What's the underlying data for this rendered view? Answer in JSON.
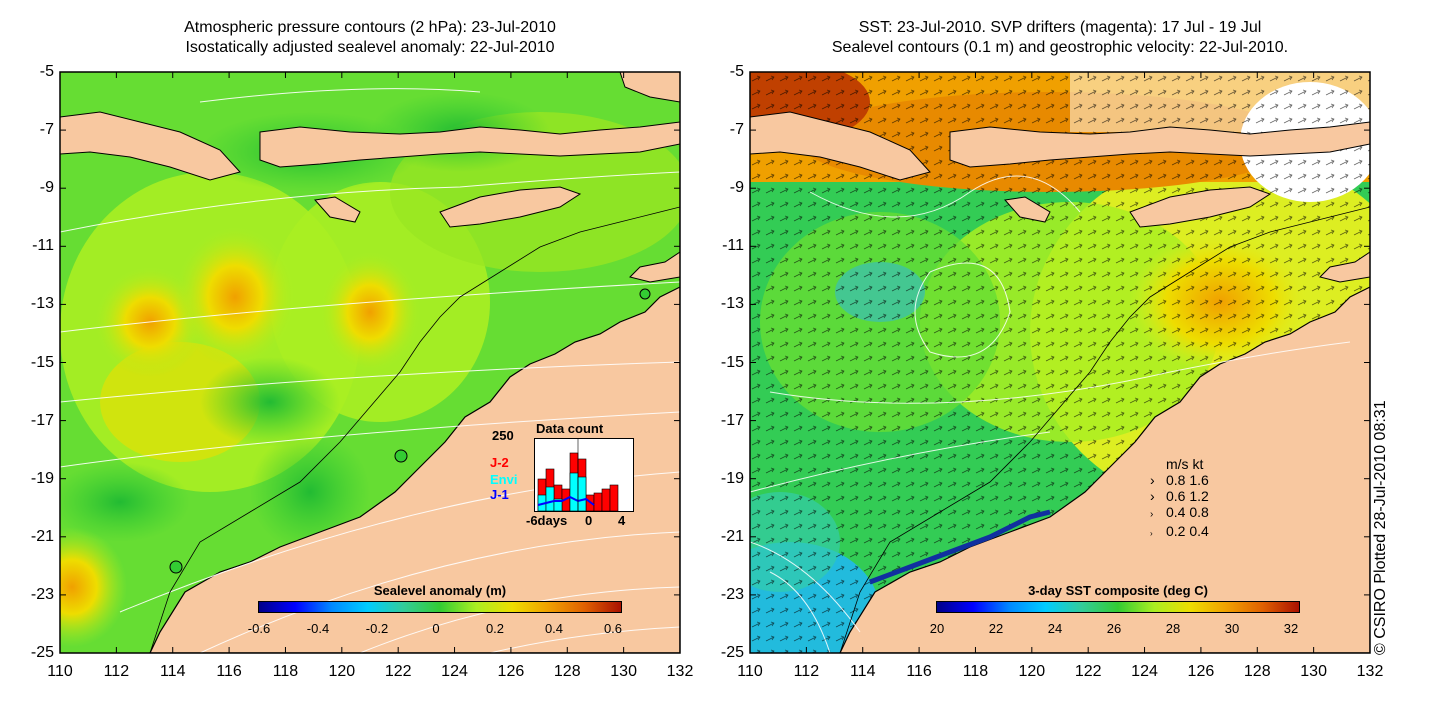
{
  "left_panel": {
    "title_line1": "Atmospheric pressure contours (2 hPa): 23-Jul-2010",
    "title_line2": "Isostatically adjusted sealevel anomaly: 22-Jul-2010",
    "colorbar": {
      "title": "Sealevel anomaly (m)",
      "ticks": [
        "-0.6",
        "-0.4",
        "-0.2",
        "0",
        "0.2",
        "0.4",
        "0.6"
      ]
    },
    "inset": {
      "title": "Data count",
      "ymax_label": "250",
      "x_ticks": [
        "-6days",
        "0",
        "4"
      ],
      "legend": [
        {
          "label": "J-2",
          "color": "#ff0000"
        },
        {
          "label": "Envi",
          "color": "#00ffff"
        },
        {
          "label": "J-1",
          "color": "#0000ff"
        }
      ]
    }
  },
  "right_panel": {
    "title_line1": "SST: 23-Jul-2010. SVP drifters (magenta): 17 Jul - 19 Jul",
    "title_line2": "Sealevel contours (0.1 m) and geostrophic velocity: 22-Jul-2010.",
    "colorbar": {
      "title": "3-day SST composite (deg C)",
      "ticks": [
        "20",
        "22",
        "24",
        "26",
        "28",
        "30",
        "32"
      ]
    },
    "vector_legend": {
      "header": "m/s  kt",
      "rows": [
        "0.8  1.6",
        "0.6  1.2",
        "0.4  0.8",
        "0.2  0.4"
      ]
    }
  },
  "axes": {
    "y_ticks": [
      "-5",
      "-7",
      "-9",
      "-11",
      "-13",
      "-15",
      "-17",
      "-19",
      "-21",
      "-23",
      "-25"
    ],
    "x_ticks": [
      "110",
      "112",
      "114",
      "116",
      "118",
      "120",
      "122",
      "124",
      "126",
      "128",
      "130",
      "132"
    ]
  },
  "credit": "© CSIRO Plotted 28-Jul-2010 08:31",
  "colors": {
    "land": "#f8c8a0",
    "ocean_green": "#33cc33",
    "ocean_lime": "#aaee22",
    "ocean_yellow": "#eedd00",
    "ocean_orange": "#f0a000",
    "frame": "#000000"
  }
}
